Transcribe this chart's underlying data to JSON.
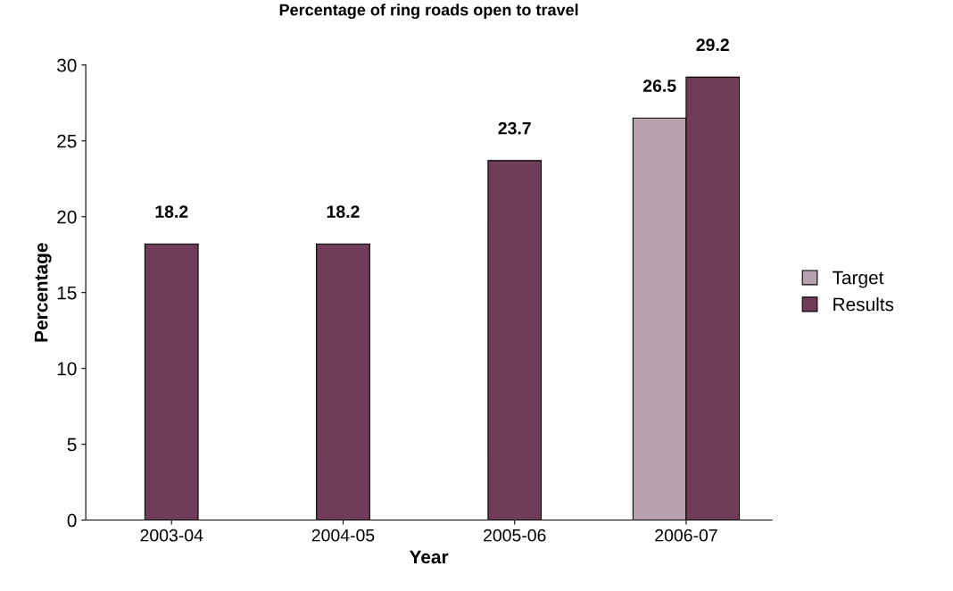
{
  "chart_data": {
    "type": "bar",
    "title": "Percentage of ring roads open to travel",
    "xlabel": "Year",
    "ylabel": "Percentage",
    "categories": [
      "2003-04",
      "2004-05",
      "2005-06",
      "2006-07"
    ],
    "series": [
      {
        "name": "Target",
        "color": "#b8a0ae",
        "values": [
          null,
          null,
          null,
          26.5
        ]
      },
      {
        "name": "Results",
        "color": "#6f3d5a",
        "values": [
          18.2,
          18.2,
          23.7,
          29.2
        ]
      }
    ],
    "ylim": [
      0,
      30
    ],
    "yticks": [
      0,
      5,
      10,
      15,
      20,
      25,
      30
    ],
    "data_labels": true,
    "legend": "right",
    "grid": false
  }
}
